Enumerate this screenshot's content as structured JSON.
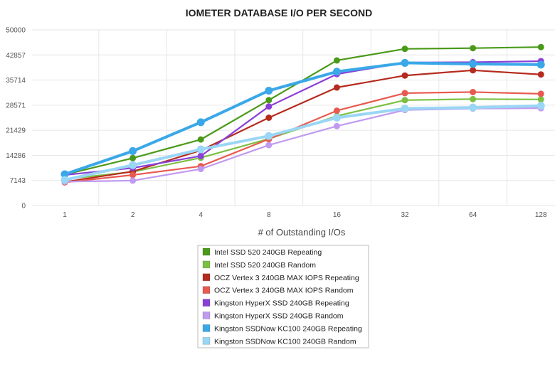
{
  "chart_data": {
    "type": "line",
    "title": "IOMETER DATABASE I/O PER SECOND",
    "xlabel": "# of Outstanding I/Os",
    "ylabel": "",
    "categories": [
      "1",
      "2",
      "4",
      "8",
      "16",
      "32",
      "64",
      "128"
    ],
    "ylim": [
      0,
      50000
    ],
    "yticks": [
      "0",
      "7143",
      "14286",
      "21429",
      "28571",
      "35714",
      "42857",
      "50000"
    ],
    "grid": true,
    "legend_position": "bottom-center",
    "series": [
      {
        "name": "Intel SSD 520 240GB Repeating",
        "color": "#4a9a1a",
        "values": [
          8800,
          13500,
          18800,
          30000,
          41300,
          44600,
          44800,
          45100
        ]
      },
      {
        "name": "Intel SSD 520 240GB Random",
        "color": "#7cc043",
        "values": [
          7500,
          9600,
          13600,
          19000,
          25500,
          30000,
          30300,
          30200
        ]
      },
      {
        "name": "OCZ Vertex 3 240GB MAX IOPS Repeating",
        "color": "#b52b1f",
        "values": [
          6700,
          9700,
          15700,
          25000,
          33600,
          37000,
          38500,
          37300
        ]
      },
      {
        "name": "OCZ Vertex 3 240GB MAX IOPS Random",
        "color": "#e85a50",
        "values": [
          6600,
          8700,
          11200,
          18900,
          27000,
          32000,
          32300,
          31800
        ]
      },
      {
        "name": "Kingston HyperX SSD 240GB Repeating",
        "color": "#8a40d8",
        "values": [
          8700,
          10700,
          14100,
          28200,
          37400,
          40700,
          40800,
          41100
        ]
      },
      {
        "name": "Kingston HyperX SSD 240GB Random",
        "color": "#c09af0",
        "values": [
          6800,
          7100,
          10400,
          17200,
          22600,
          27200,
          27600,
          27700
        ]
      },
      {
        "name": "Kingston SSDNow KC100 240GB Repeating",
        "color": "#3aa8e8",
        "values": [
          8900,
          15500,
          23700,
          32700,
          38100,
          40600,
          40300,
          40100
        ]
      },
      {
        "name": "Kingston SSDNow KC100 240GB Random",
        "color": "#9ad6f5",
        "values": [
          7300,
          11500,
          16000,
          19800,
          25000,
          27600,
          27900,
          28400
        ]
      }
    ]
  }
}
